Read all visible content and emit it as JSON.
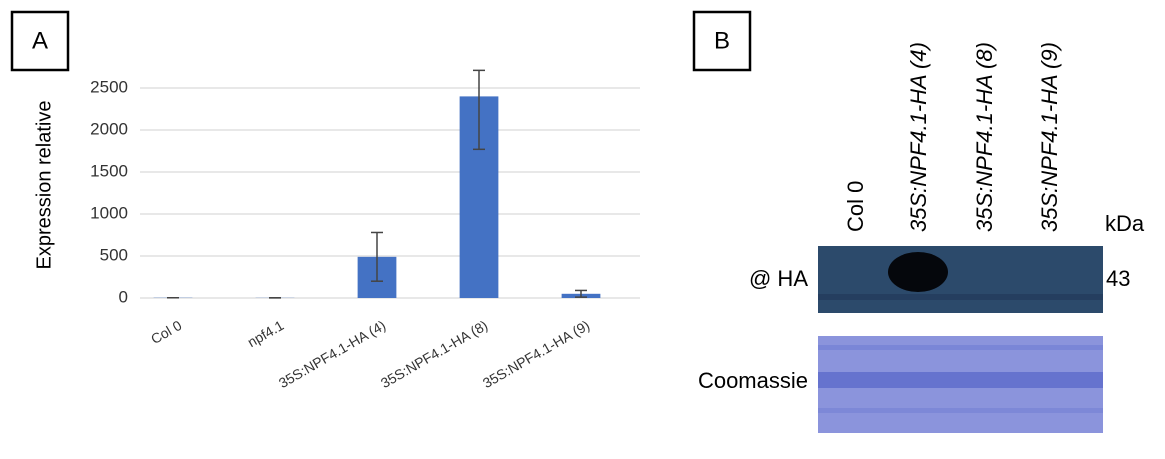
{
  "panels": {
    "a": "A",
    "b": "B"
  },
  "chart_data": {
    "type": "bar",
    "y_label": "Expression relative",
    "categories": [
      "Col 0",
      "npf4.1",
      "35S:NPF4.1-HA (4)",
      "35S:NPF4.1-HA (8)",
      "35S:NPF4.1-HA (9)"
    ],
    "values": [
      3,
      2,
      490,
      2400,
      50
    ],
    "error_minus": [
      0,
      0,
      290,
      630,
      40
    ],
    "error_plus": [
      0,
      0,
      290,
      310,
      40
    ],
    "color": "#4472c4",
    "ylim": [
      0,
      2500
    ],
    "yticks": [
      0,
      500,
      1000,
      1500,
      2000,
      2500
    ],
    "grid": true
  },
  "blot": {
    "lanes": [
      "Col 0",
      "35S:NPF4.1-HA (4)",
      "35S:NPF4.1-HA (8)",
      "35S:NPF4.1-HA (9)"
    ],
    "lane_italic": [
      false,
      true,
      true,
      true
    ],
    "kda_label": "kDa",
    "rows": [
      {
        "label": "@ HA",
        "size": 43
      },
      {
        "label": "Coomassie"
      }
    ]
  }
}
